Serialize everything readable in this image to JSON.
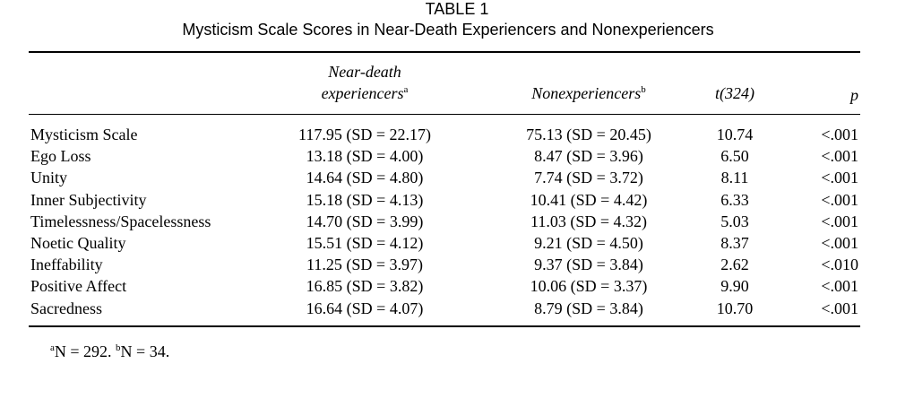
{
  "table": {
    "label": "TABLE 1",
    "title": "Mysticism Scale Scores in Near-Death Experiencers and Nonexperiencers",
    "headers": {
      "col1_line1": "Near-death",
      "col1_line2": "experiencers",
      "col1_sup": "a",
      "col2": "Nonexperiencers",
      "col2_sup": "b",
      "col3": "t(324)",
      "col4": "p"
    },
    "rows": [
      {
        "label": "Mysticism Scale",
        "nde": "117.95 (SD = 22.17)",
        "non": "75.13 (SD = 20.45)",
        "t": "10.74",
        "p": "<.001"
      },
      {
        "label": "Ego Loss",
        "nde": "13.18 (SD = 4.00)",
        "non": "8.47 (SD = 3.96)",
        "t": "6.50",
        "p": "<.001"
      },
      {
        "label": "Unity",
        "nde": "14.64 (SD = 4.80)",
        "non": "7.74 (SD = 3.72)",
        "t": "8.11",
        "p": "<.001"
      },
      {
        "label": "Inner Subjectivity",
        "nde": "15.18 (SD = 4.13)",
        "non": "10.41 (SD = 4.42)",
        "t": "6.33",
        "p": "<.001"
      },
      {
        "label": "Timelessness/Spacelessness",
        "nde": "14.70 (SD = 3.99)",
        "non": "11.03 (SD = 4.32)",
        "t": "5.03",
        "p": "<.001"
      },
      {
        "label": "Noetic Quality",
        "nde": "15.51 (SD = 4.12)",
        "non": "9.21 (SD = 4.50)",
        "t": "8.37",
        "p": "<.001"
      },
      {
        "label": "Ineffability",
        "nde": "11.25 (SD = 3.97)",
        "non": "9.37 (SD = 3.84)",
        "t": "2.62",
        "p": "<.010"
      },
      {
        "label": "Positive Affect",
        "nde": "16.85 (SD = 3.82)",
        "non": "10.06 (SD = 3.37)",
        "t": "9.90",
        "p": "<.001"
      },
      {
        "label": "Sacredness",
        "nde": "16.64 (SD = 4.07)",
        "non": "8.79 (SD = 3.84)",
        "t": "10.70",
        "p": "<.001"
      }
    ],
    "footnote": {
      "a_mark": "a",
      "a_text": "N = 292.",
      "b_mark": "b",
      "b_text": "N = 34."
    }
  }
}
